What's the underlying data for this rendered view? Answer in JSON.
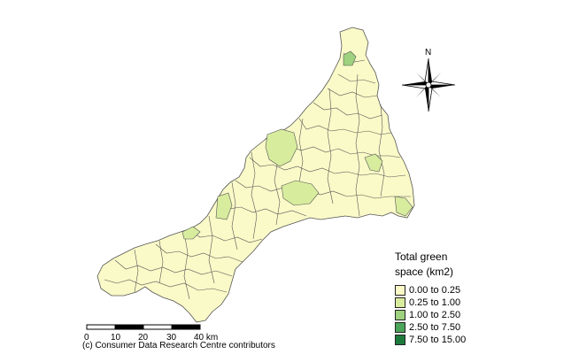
{
  "legend": {
    "title_line1": "Total green",
    "title_line2": "space (km2)",
    "items": [
      {
        "label": "0.00 to 0.25",
        "color": "#fafac8"
      },
      {
        "label": "0.25 to 1.00",
        "color": "#d8ec9e"
      },
      {
        "label": "1.00 to 2.50",
        "color": "#9ed27e"
      },
      {
        "label": "2.50 to 7.50",
        "color": "#4ba55a"
      },
      {
        "label": "7.50 to 15.00",
        "color": "#1d7a3c"
      }
    ]
  },
  "north": {
    "label": "N"
  },
  "scale_bar": {
    "ticks": [
      "0",
      "10",
      "20",
      "30",
      "40 km"
    ]
  },
  "credit": "(c) Consumer Data Research Centre contributors"
}
